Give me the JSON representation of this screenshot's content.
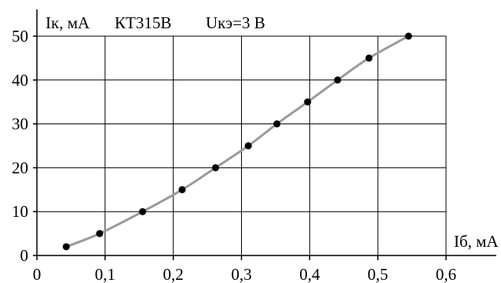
{
  "chart_data": {
    "type": "line",
    "title": "КТ315В",
    "subtitle": "Uкэ=3 В",
    "xlabel": "Iб, мА",
    "ylabel": "Iк, мА",
    "xlim": [
      0,
      0.6
    ],
    "ylim": [
      0,
      50
    ],
    "grid": true,
    "x_ticks": [
      0,
      0.1,
      0.2,
      0.3,
      0.4,
      0.5,
      0.6
    ],
    "x_tick_labels": [
      "0",
      "0,1",
      "0,2",
      "0,3",
      "0,4",
      "0,5",
      "0,6"
    ],
    "y_ticks": [
      0,
      10,
      20,
      30,
      40,
      50
    ],
    "y_tick_labels": [
      "0",
      "10",
      "20",
      "30",
      "40",
      "50"
    ],
    "series": [
      {
        "color": "#9a9a9a",
        "marker_color": "#000000",
        "x": [
          0.043,
          0.092,
          0.155,
          0.213,
          0.262,
          0.31,
          0.352,
          0.397,
          0.441,
          0.487,
          0.545
        ],
        "y": [
          2,
          5,
          10,
          15,
          20,
          25,
          30,
          35,
          40,
          45,
          50
        ]
      }
    ]
  }
}
